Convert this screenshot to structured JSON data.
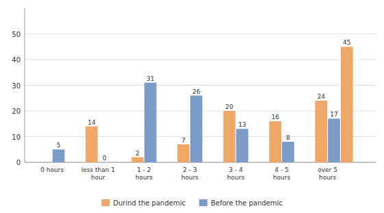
{
  "chart_data": {
    "type": "bar",
    "categories": [
      "0 hours",
      "less than 1\nhour",
      "1 - 2\nhours",
      "2 - 3\nhours",
      "3 - 4\nhours",
      "4 - 5\nhours",
      "over 5\nhours"
    ],
    "series": [
      {
        "name": "Durind the pandemic",
        "color": "#f0a868",
        "values": [
          0,
          14,
          2,
          7,
          20,
          16,
          24
        ],
        "value_labels": [
          null,
          "14",
          "2",
          "7",
          "20",
          "16",
          "24"
        ]
      },
      {
        "name": "Before the pandemic",
        "color": "#7b9cc8",
        "values": [
          5,
          0,
          31,
          26,
          13,
          8,
          17
        ]
      },
      {
        "name": "Durind the pandemic",
        "color": "#f0a868",
        "values": [
          null,
          null,
          null,
          null,
          null,
          null,
          45
        ]
      }
    ],
    "ylim": [
      0,
      60
    ],
    "yticks": [
      0,
      10,
      20,
      30,
      40,
      50
    ],
    "grid": true,
    "legend": "bottom",
    "data_labels": true
  }
}
